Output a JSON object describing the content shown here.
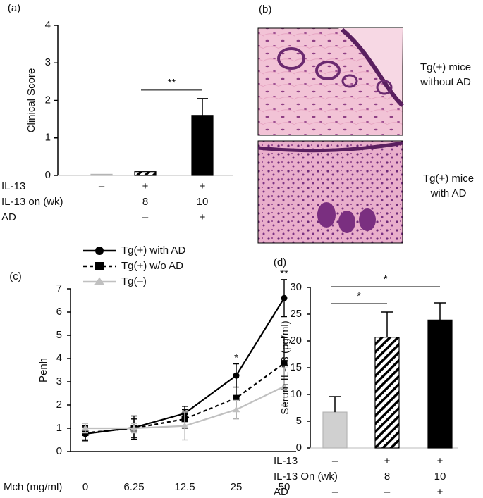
{
  "chart_data": [
    {
      "type": "bar",
      "panel_label": "(a)",
      "ylabel": "Clinical Score",
      "values": [
        0.03,
        0.1,
        1.6
      ],
      "errors": [
        0,
        0,
        0.45
      ],
      "fills": [
        "#d0d0d0",
        "hatch",
        "#000000"
      ],
      "ylim": [
        0,
        4
      ],
      "yticks": [
        0,
        1,
        2,
        3,
        4
      ],
      "conditions": [
        {
          "label": "IL-13",
          "values": [
            "–",
            "+",
            "+"
          ]
        },
        {
          "label": "IL-13 on (wk)",
          "values": [
            null,
            "8",
            "10"
          ]
        },
        {
          "label": "AD",
          "values": [
            null,
            "–",
            "+"
          ]
        }
      ],
      "annotations": [
        {
          "text": "**",
          "from": 1,
          "to": 2
        }
      ]
    },
    {
      "type": "line",
      "panel_label": "(c)",
      "ylabel": "Penh",
      "xlabel": "Mch (mg/ml)",
      "categories": [
        "0",
        "6.25",
        "12.5",
        "25",
        "50"
      ],
      "series": [
        {
          "name": "Tg(+) with AD",
          "color": "#000000",
          "dash": false,
          "marker": "circle",
          "values": [
            0.76,
            1.03,
            1.64,
            3.27,
            6.6
          ],
          "errors": [
            0.3,
            0.5,
            0.3,
            0.5,
            0.8
          ]
        },
        {
          "name": "Tg(+) w/o AD",
          "color": "#000000",
          "dash": true,
          "marker": "square",
          "values": [
            0.8,
            1.0,
            1.4,
            2.3,
            3.8
          ],
          "errors": [
            0.3,
            0.4,
            0.4,
            0.9,
            1.1
          ]
        },
        {
          "name": "Tg(–)",
          "color": "#c0c0c0",
          "dash": false,
          "marker": "triangle",
          "values": [
            1.0,
            1.0,
            1.1,
            1.8,
            2.8
          ],
          "errors": [
            0.2,
            0.2,
            0.6,
            0.4,
            0.8
          ]
        }
      ],
      "ylim": [
        0,
        7
      ],
      "yticks": [
        0,
        1,
        2,
        3,
        4,
        5,
        6,
        7
      ],
      "annotations": [
        {
          "text": "*",
          "at": 3
        },
        {
          "text": "**",
          "at": 4
        }
      ]
    },
    {
      "type": "bar",
      "panel_label": "(d)",
      "ylabel": "Serum IL-13 (pg/ml)",
      "values": [
        6.7,
        20.7,
        23.9
      ],
      "errors": [
        2.9,
        4.7,
        3.2
      ],
      "fills": [
        "#d0d0d0",
        "hatch",
        "#000000"
      ],
      "ylim": [
        0,
        30
      ],
      "yticks": [
        0,
        5,
        10,
        15,
        20,
        25,
        30
      ],
      "conditions": [
        {
          "label": "IL-13",
          "values": [
            "–",
            "+",
            "+"
          ]
        },
        {
          "label": "IL-13 On (wk)",
          "values": [
            null,
            "8",
            "10"
          ]
        },
        {
          "label": "AD",
          "values": [
            "–",
            "–",
            "+"
          ]
        }
      ],
      "annotations": [
        {
          "text": "*",
          "from": 0,
          "to": 1
        },
        {
          "text": "*",
          "from": 0,
          "to": 2
        }
      ]
    }
  ],
  "panel_b": {
    "panel_label": "(b)",
    "images": [
      {
        "caption": [
          "Tg(+) mice",
          "without AD"
        ]
      },
      {
        "caption": [
          "Tg(+) mice",
          "with AD"
        ]
      }
    ]
  }
}
